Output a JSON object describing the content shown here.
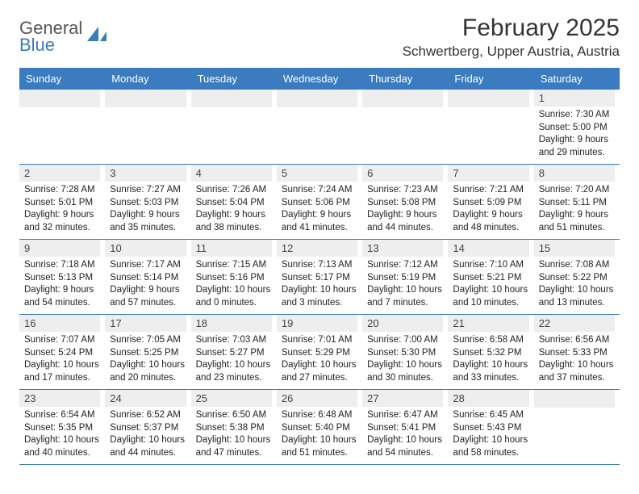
{
  "logo": {
    "line1": "General",
    "line2": "Blue",
    "color_text": "#555555",
    "color_blue": "#3b7bbf"
  },
  "header": {
    "title": "February 2025",
    "location": "Schwertberg, Upper Austria, Austria",
    "title_fontsize": 30,
    "location_fontsize": 17,
    "title_color": "#333333"
  },
  "calendar": {
    "type": "table",
    "header_bg": "#3b7bbf",
    "header_fg": "#ffffff",
    "daynum_bg": "#eeeeee",
    "daynum_fg": "#444444",
    "border_color": "#3b7bbf",
    "text_color": "#222222",
    "info_fontsize": 11.5,
    "daynames": [
      "Sunday",
      "Monday",
      "Tuesday",
      "Wednesday",
      "Thursday",
      "Friday",
      "Saturday"
    ],
    "weeks": [
      [
        {
          "day": null
        },
        {
          "day": null
        },
        {
          "day": null
        },
        {
          "day": null
        },
        {
          "day": null
        },
        {
          "day": null
        },
        {
          "day": "1",
          "sunrise": "Sunrise: 7:30 AM",
          "sunset": "Sunset: 5:00 PM",
          "daylight1": "Daylight: 9 hours",
          "daylight2": "and 29 minutes."
        }
      ],
      [
        {
          "day": "2",
          "sunrise": "Sunrise: 7:28 AM",
          "sunset": "Sunset: 5:01 PM",
          "daylight1": "Daylight: 9 hours",
          "daylight2": "and 32 minutes."
        },
        {
          "day": "3",
          "sunrise": "Sunrise: 7:27 AM",
          "sunset": "Sunset: 5:03 PM",
          "daylight1": "Daylight: 9 hours",
          "daylight2": "and 35 minutes."
        },
        {
          "day": "4",
          "sunrise": "Sunrise: 7:26 AM",
          "sunset": "Sunset: 5:04 PM",
          "daylight1": "Daylight: 9 hours",
          "daylight2": "and 38 minutes."
        },
        {
          "day": "5",
          "sunrise": "Sunrise: 7:24 AM",
          "sunset": "Sunset: 5:06 PM",
          "daylight1": "Daylight: 9 hours",
          "daylight2": "and 41 minutes."
        },
        {
          "day": "6",
          "sunrise": "Sunrise: 7:23 AM",
          "sunset": "Sunset: 5:08 PM",
          "daylight1": "Daylight: 9 hours",
          "daylight2": "and 44 minutes."
        },
        {
          "day": "7",
          "sunrise": "Sunrise: 7:21 AM",
          "sunset": "Sunset: 5:09 PM",
          "daylight1": "Daylight: 9 hours",
          "daylight2": "and 48 minutes."
        },
        {
          "day": "8",
          "sunrise": "Sunrise: 7:20 AM",
          "sunset": "Sunset: 5:11 PM",
          "daylight1": "Daylight: 9 hours",
          "daylight2": "and 51 minutes."
        }
      ],
      [
        {
          "day": "9",
          "sunrise": "Sunrise: 7:18 AM",
          "sunset": "Sunset: 5:13 PM",
          "daylight1": "Daylight: 9 hours",
          "daylight2": "and 54 minutes."
        },
        {
          "day": "10",
          "sunrise": "Sunrise: 7:17 AM",
          "sunset": "Sunset: 5:14 PM",
          "daylight1": "Daylight: 9 hours",
          "daylight2": "and 57 minutes."
        },
        {
          "day": "11",
          "sunrise": "Sunrise: 7:15 AM",
          "sunset": "Sunset: 5:16 PM",
          "daylight1": "Daylight: 10 hours",
          "daylight2": "and 0 minutes."
        },
        {
          "day": "12",
          "sunrise": "Sunrise: 7:13 AM",
          "sunset": "Sunset: 5:17 PM",
          "daylight1": "Daylight: 10 hours",
          "daylight2": "and 3 minutes."
        },
        {
          "day": "13",
          "sunrise": "Sunrise: 7:12 AM",
          "sunset": "Sunset: 5:19 PM",
          "daylight1": "Daylight: 10 hours",
          "daylight2": "and 7 minutes."
        },
        {
          "day": "14",
          "sunrise": "Sunrise: 7:10 AM",
          "sunset": "Sunset: 5:21 PM",
          "daylight1": "Daylight: 10 hours",
          "daylight2": "and 10 minutes."
        },
        {
          "day": "15",
          "sunrise": "Sunrise: 7:08 AM",
          "sunset": "Sunset: 5:22 PM",
          "daylight1": "Daylight: 10 hours",
          "daylight2": "and 13 minutes."
        }
      ],
      [
        {
          "day": "16",
          "sunrise": "Sunrise: 7:07 AM",
          "sunset": "Sunset: 5:24 PM",
          "daylight1": "Daylight: 10 hours",
          "daylight2": "and 17 minutes."
        },
        {
          "day": "17",
          "sunrise": "Sunrise: 7:05 AM",
          "sunset": "Sunset: 5:25 PM",
          "daylight1": "Daylight: 10 hours",
          "daylight2": "and 20 minutes."
        },
        {
          "day": "18",
          "sunrise": "Sunrise: 7:03 AM",
          "sunset": "Sunset: 5:27 PM",
          "daylight1": "Daylight: 10 hours",
          "daylight2": "and 23 minutes."
        },
        {
          "day": "19",
          "sunrise": "Sunrise: 7:01 AM",
          "sunset": "Sunset: 5:29 PM",
          "daylight1": "Daylight: 10 hours",
          "daylight2": "and 27 minutes."
        },
        {
          "day": "20",
          "sunrise": "Sunrise: 7:00 AM",
          "sunset": "Sunset: 5:30 PM",
          "daylight1": "Daylight: 10 hours",
          "daylight2": "and 30 minutes."
        },
        {
          "day": "21",
          "sunrise": "Sunrise: 6:58 AM",
          "sunset": "Sunset: 5:32 PM",
          "daylight1": "Daylight: 10 hours",
          "daylight2": "and 33 minutes."
        },
        {
          "day": "22",
          "sunrise": "Sunrise: 6:56 AM",
          "sunset": "Sunset: 5:33 PM",
          "daylight1": "Daylight: 10 hours",
          "daylight2": "and 37 minutes."
        }
      ],
      [
        {
          "day": "23",
          "sunrise": "Sunrise: 6:54 AM",
          "sunset": "Sunset: 5:35 PM",
          "daylight1": "Daylight: 10 hours",
          "daylight2": "and 40 minutes."
        },
        {
          "day": "24",
          "sunrise": "Sunrise: 6:52 AM",
          "sunset": "Sunset: 5:37 PM",
          "daylight1": "Daylight: 10 hours",
          "daylight2": "and 44 minutes."
        },
        {
          "day": "25",
          "sunrise": "Sunrise: 6:50 AM",
          "sunset": "Sunset: 5:38 PM",
          "daylight1": "Daylight: 10 hours",
          "daylight2": "and 47 minutes."
        },
        {
          "day": "26",
          "sunrise": "Sunrise: 6:48 AM",
          "sunset": "Sunset: 5:40 PM",
          "daylight1": "Daylight: 10 hours",
          "daylight2": "and 51 minutes."
        },
        {
          "day": "27",
          "sunrise": "Sunrise: 6:47 AM",
          "sunset": "Sunset: 5:41 PM",
          "daylight1": "Daylight: 10 hours",
          "daylight2": "and 54 minutes."
        },
        {
          "day": "28",
          "sunrise": "Sunrise: 6:45 AM",
          "sunset": "Sunset: 5:43 PM",
          "daylight1": "Daylight: 10 hours",
          "daylight2": "and 58 minutes."
        },
        {
          "day": null
        }
      ]
    ]
  }
}
